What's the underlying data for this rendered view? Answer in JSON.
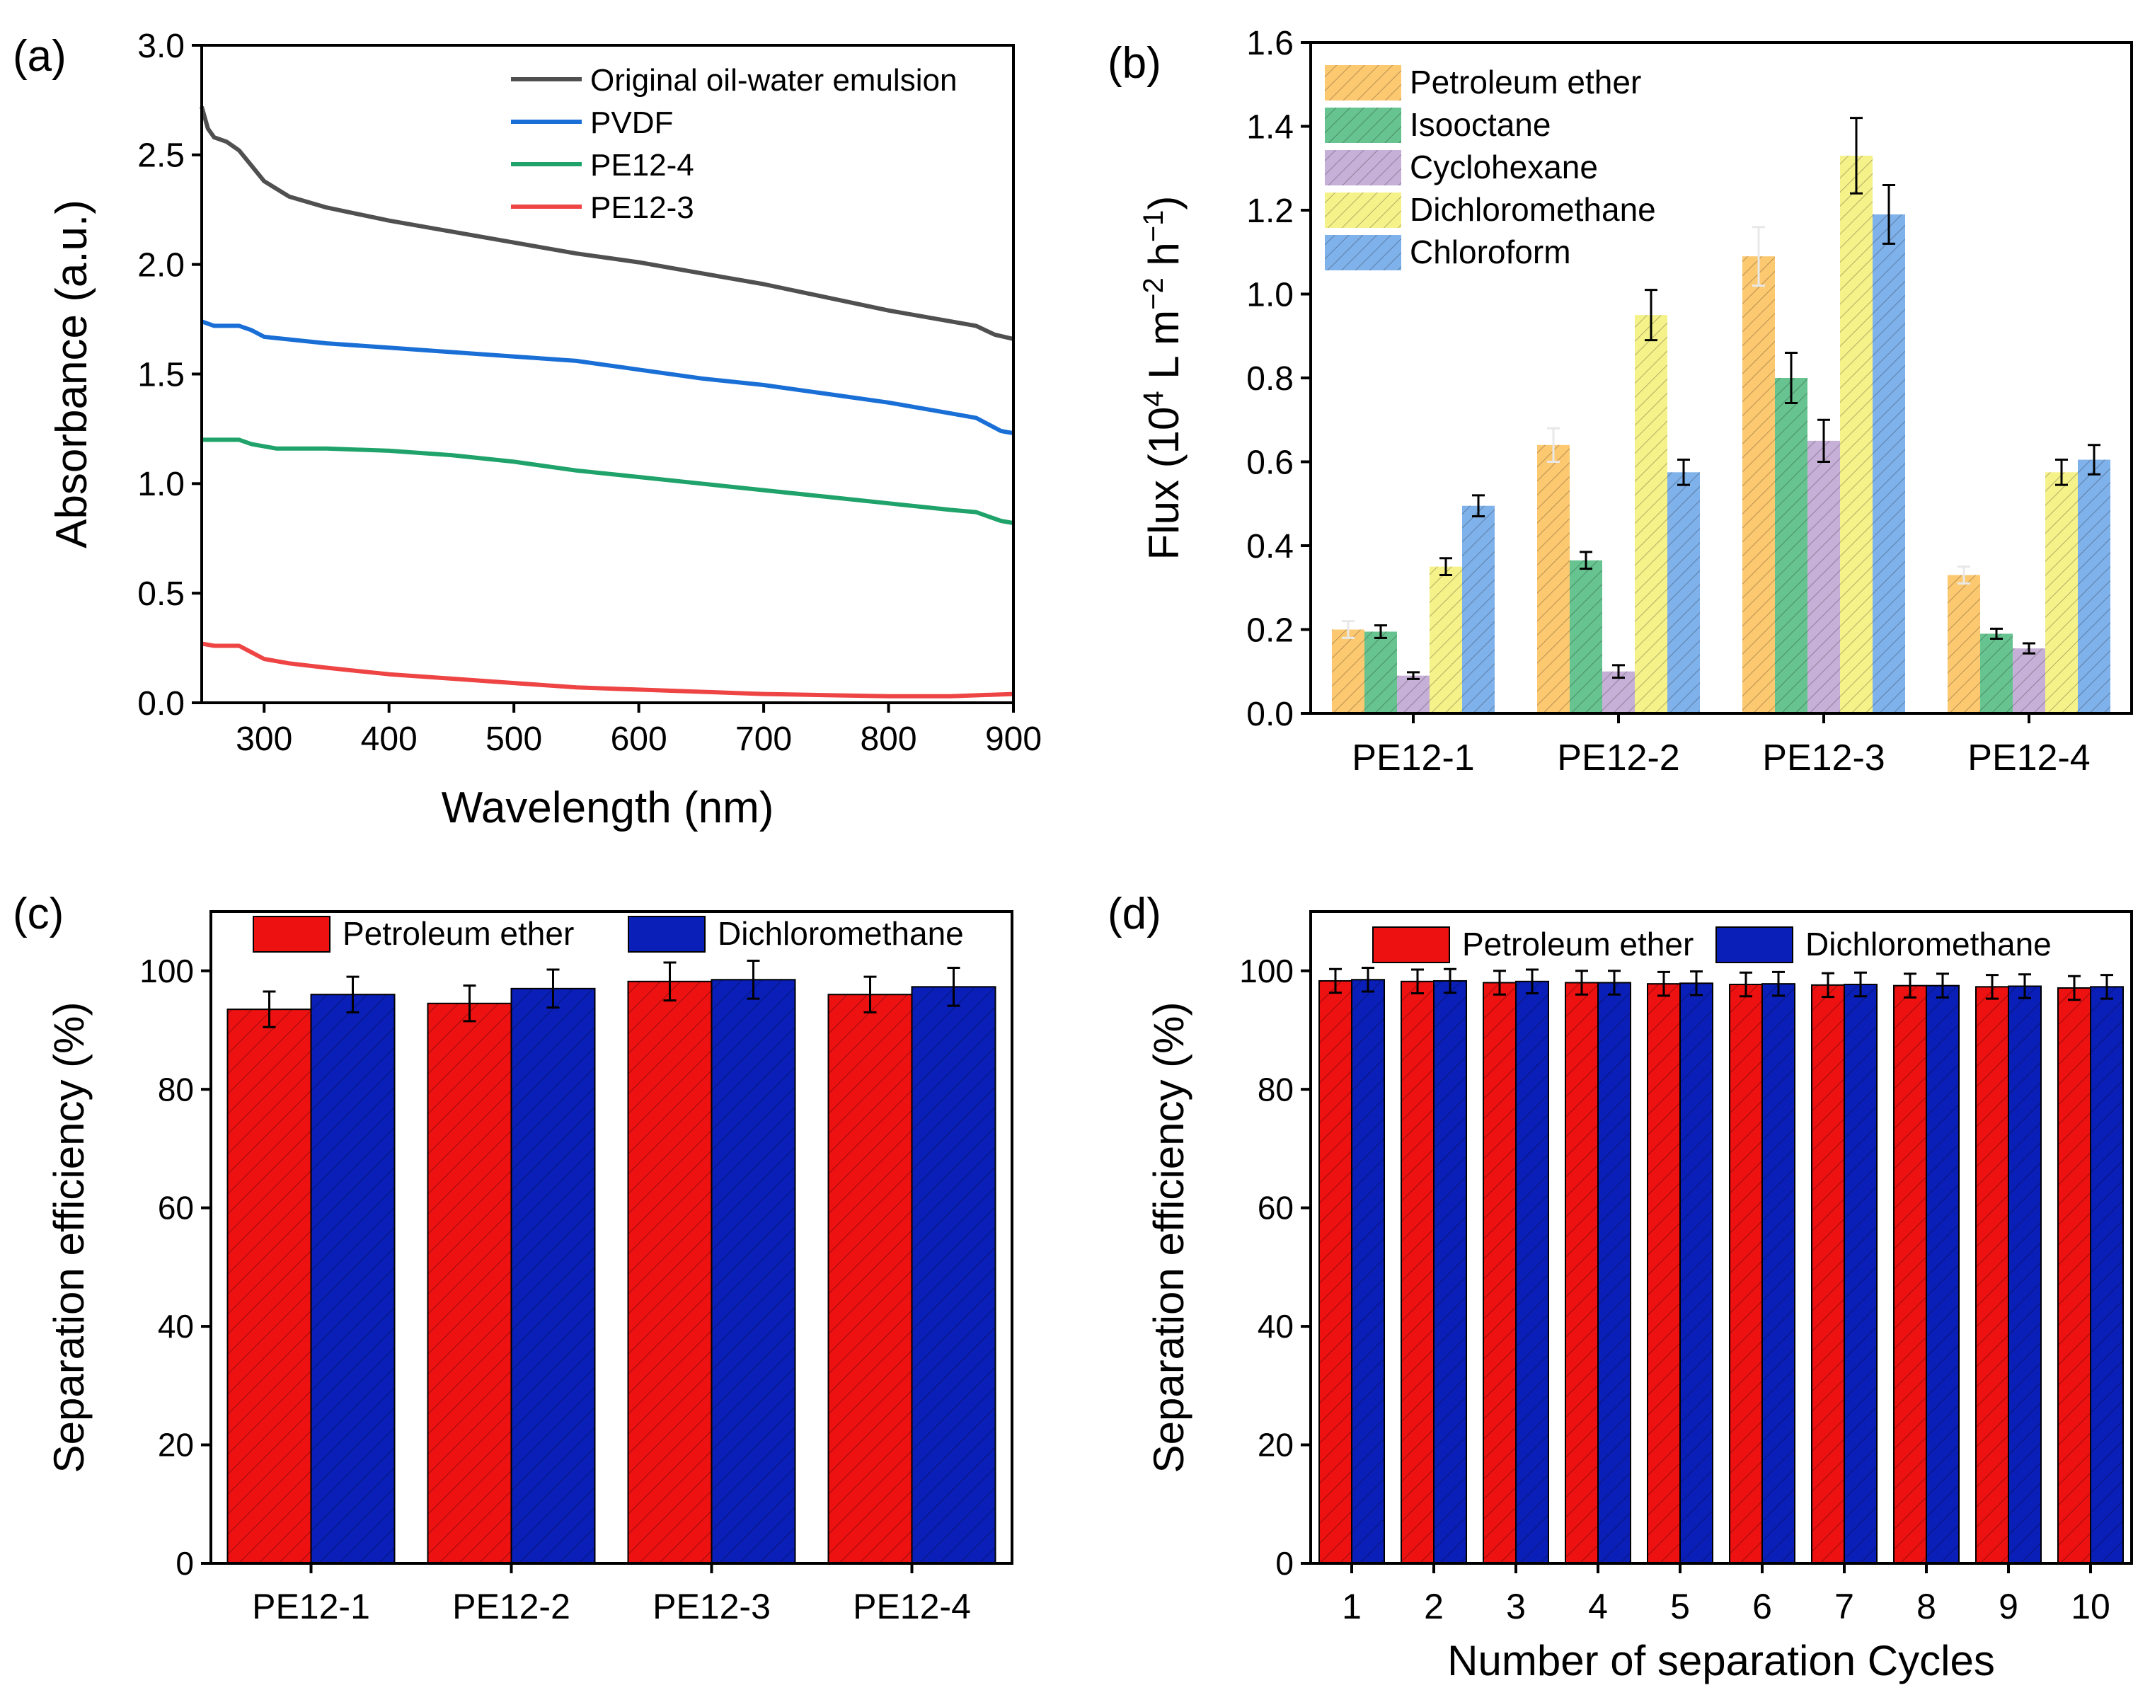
{
  "colors": {
    "black_series": "#505050",
    "blue_series": "#1a6fd6",
    "green_series": "#1fa36a",
    "red_series": "#ee4444",
    "petroleum": "#fdc970",
    "isooctane": "#67c490",
    "cyclohexane": "#c7b0d7",
    "dichloromethane_b": "#f5f28a",
    "chloroform": "#7fb1ea",
    "bar_red": "#ee1111",
    "bar_blue": "#0a1fb8"
  },
  "panels": {
    "a": {
      "tag": "(a)"
    },
    "b": {
      "tag": "(b)"
    },
    "c": {
      "tag": "(c)"
    },
    "d": {
      "tag": "(d)"
    }
  },
  "chart_data": [
    {
      "panel": "a",
      "type": "line",
      "title": "",
      "xlabel": "Wavelength (nm)",
      "ylabel": "Absorbance (a.u.)",
      "xlim": [
        250,
        900
      ],
      "ylim": [
        0,
        3.0
      ],
      "xticks": [
        300,
        400,
        500,
        600,
        700,
        800,
        900
      ],
      "xtick_labels": [
        "300",
        "400",
        "500",
        "600",
        "700",
        "800",
        "900"
      ],
      "yticks": [
        0,
        0.5,
        1.0,
        1.5,
        2.0,
        2.5,
        3.0
      ],
      "ytick_labels": [
        "0.0",
        "0.5",
        "1.0",
        "1.5",
        "2.0",
        "2.5",
        "3.0"
      ],
      "legend_position": "top-right",
      "series": [
        {
          "name": "Original oil-water emulsion",
          "color_key": "black_series",
          "x": [
            250,
            255,
            260,
            270,
            280,
            290,
            300,
            320,
            350,
            400,
            450,
            500,
            550,
            600,
            650,
            700,
            750,
            800,
            850,
            870,
            885,
            900
          ],
          "y": [
            2.72,
            2.62,
            2.58,
            2.56,
            2.52,
            2.45,
            2.38,
            2.31,
            2.26,
            2.2,
            2.15,
            2.1,
            2.05,
            2.01,
            1.96,
            1.91,
            1.85,
            1.79,
            1.74,
            1.72,
            1.68,
            1.66
          ]
        },
        {
          "name": "PVDF",
          "color_key": "blue_series",
          "x": [
            250,
            260,
            280,
            290,
            300,
            350,
            400,
            450,
            500,
            550,
            600,
            650,
            700,
            750,
            800,
            850,
            870,
            880,
            890,
            900
          ],
          "y": [
            1.74,
            1.72,
            1.72,
            1.7,
            1.67,
            1.64,
            1.62,
            1.6,
            1.58,
            1.56,
            1.52,
            1.48,
            1.45,
            1.41,
            1.37,
            1.32,
            1.3,
            1.27,
            1.24,
            1.23
          ]
        },
        {
          "name": "PE12-4",
          "color_key": "green_series",
          "x": [
            250,
            260,
            280,
            290,
            310,
            350,
            400,
            450,
            500,
            550,
            600,
            650,
            700,
            750,
            800,
            850,
            870,
            880,
            890,
            900
          ],
          "y": [
            1.2,
            1.2,
            1.2,
            1.18,
            1.16,
            1.16,
            1.15,
            1.13,
            1.1,
            1.06,
            1.03,
            1.0,
            0.97,
            0.94,
            0.91,
            0.88,
            0.87,
            0.85,
            0.83,
            0.82
          ]
        },
        {
          "name": "PE12-3",
          "color_key": "red_series",
          "x": [
            250,
            260,
            280,
            290,
            300,
            320,
            350,
            400,
            450,
            500,
            550,
            600,
            650,
            700,
            750,
            800,
            850,
            900
          ],
          "y": [
            0.27,
            0.26,
            0.26,
            0.23,
            0.2,
            0.18,
            0.16,
            0.13,
            0.11,
            0.09,
            0.07,
            0.06,
            0.05,
            0.04,
            0.035,
            0.03,
            0.03,
            0.04
          ]
        }
      ]
    },
    {
      "panel": "b",
      "type": "bar",
      "title": "",
      "xlabel": "",
      "ylabel_parts": {
        "main": "Flux (10",
        "exp1": "4",
        "mid1": " L m",
        "exp2": "−2",
        "mid2": " h",
        "exp3": "−1",
        "end": ")"
      },
      "ylim": [
        0,
        1.6
      ],
      "yticks": [
        0,
        0.2,
        0.4,
        0.6,
        0.8,
        1.0,
        1.2,
        1.4,
        1.6
      ],
      "ytick_labels": [
        "0.0",
        "0.2",
        "0.4",
        "0.6",
        "0.8",
        "1.0",
        "1.2",
        "1.4",
        "1.6"
      ],
      "categories": [
        "PE12-1",
        "PE12-2",
        "PE12-3",
        "PE12-4"
      ],
      "legend_position": "top-left",
      "series": [
        {
          "name": "Petroleum ether",
          "color_key": "petroleum",
          "values": [
            0.2,
            0.64,
            1.09,
            0.33
          ],
          "errors": [
            0.02,
            0.04,
            0.07,
            0.02
          ]
        },
        {
          "name": "Isooctane",
          "color_key": "isooctane",
          "values": [
            0.195,
            0.365,
            0.8,
            0.19
          ],
          "errors": [
            0.015,
            0.02,
            0.06,
            0.012
          ]
        },
        {
          "name": "Cyclohexane",
          "color_key": "cyclohexane",
          "values": [
            0.09,
            0.1,
            0.65,
            0.155
          ],
          "errors": [
            0.008,
            0.015,
            0.05,
            0.012
          ]
        },
        {
          "name": "Dichloromethane",
          "color_key": "dichloromethane_b",
          "values": [
            0.35,
            0.95,
            1.33,
            0.575
          ],
          "errors": [
            0.02,
            0.06,
            0.09,
            0.03
          ]
        },
        {
          "name": "Chloroform",
          "color_key": "chloroform",
          "values": [
            0.495,
            0.575,
            1.19,
            0.605
          ],
          "errors": [
            0.025,
            0.03,
            0.07,
            0.035
          ]
        }
      ]
    },
    {
      "panel": "c",
      "type": "bar",
      "title": "",
      "xlabel": "",
      "ylabel": "Separation efficiency (%)",
      "ylim": [
        0,
        110
      ],
      "yticks": [
        0,
        20,
        40,
        60,
        80,
        100
      ],
      "ytick_labels": [
        "0",
        "20",
        "40",
        "60",
        "80",
        "100"
      ],
      "categories": [
        "PE12-1",
        "PE12-2",
        "PE12-3",
        "PE12-4"
      ],
      "legend_position": "top",
      "series": [
        {
          "name": "Petroleum ether",
          "color_key": "bar_red",
          "values": [
            93.5,
            94.5,
            98.2,
            96.0
          ],
          "errors": [
            3.0,
            3.0,
            3.2,
            3.0
          ]
        },
        {
          "name": "Dichloromethane",
          "color_key": "bar_blue",
          "values": [
            96.0,
            97.0,
            98.5,
            97.3
          ],
          "errors": [
            3.0,
            3.2,
            3.2,
            3.2
          ]
        }
      ]
    },
    {
      "panel": "d",
      "type": "bar",
      "title": "",
      "xlabel": "Number of separation Cycles",
      "ylabel": "Separation efficiency (%)",
      "ylim": [
        0,
        110
      ],
      "yticks": [
        0,
        20,
        40,
        60,
        80,
        100
      ],
      "ytick_labels": [
        "0",
        "20",
        "40",
        "60",
        "80",
        "100"
      ],
      "categories": [
        "1",
        "2",
        "3",
        "4",
        "5",
        "6",
        "7",
        "8",
        "9",
        "10"
      ],
      "legend_position": "top",
      "series": [
        {
          "name": "Petroleum ether",
          "color_key": "bar_red",
          "values": [
            98.3,
            98.2,
            98.0,
            98.0,
            97.8,
            97.7,
            97.6,
            97.5,
            97.3,
            97.1
          ],
          "errors": [
            2.0,
            2.0,
            2.0,
            2.0,
            2.0,
            2.0,
            2.0,
            2.0,
            2.0,
            2.0
          ]
        },
        {
          "name": "Dichloromethane",
          "color_key": "bar_blue",
          "values": [
            98.5,
            98.3,
            98.2,
            98.0,
            97.9,
            97.8,
            97.7,
            97.5,
            97.4,
            97.3
          ],
          "errors": [
            2.0,
            2.0,
            2.0,
            2.0,
            2.0,
            2.0,
            2.0,
            2.0,
            2.0,
            2.0
          ]
        }
      ]
    }
  ]
}
